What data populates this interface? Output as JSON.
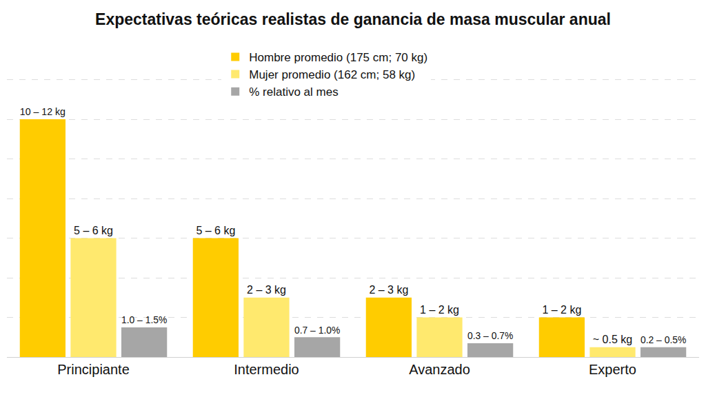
{
  "chart_data": {
    "type": "bar",
    "title": "Expectativas teóricas realistas de ganancia de masa muscular anual",
    "categories": [
      "Principiante",
      "Intermedio",
      "Avanzado",
      "Experto"
    ],
    "series": [
      {
        "name": "Hombre promedio (175 cm; 70 kg)",
        "color": "#FFCC00",
        "values": [
          12,
          6,
          3,
          2
        ],
        "value_labels": [
          "10 – 12 kg",
          "5 – 6 kg",
          "2 – 3 kg",
          "1 – 2 kg"
        ]
      },
      {
        "name": "Mujer promedio (162 cm; 58 kg)",
        "color": "#FFE96E",
        "values": [
          6,
          3,
          2,
          0.5
        ],
        "value_labels": [
          "5 – 6 kg",
          "2 – 3 kg",
          "1 – 2 kg",
          "~ 0.5 kg"
        ]
      },
      {
        "name": "% relativo al mes",
        "color": "#A6A6A6",
        "values": [
          1.5,
          1.0,
          0.7,
          0.5
        ],
        "value_labels": [
          "1.0 – 1.5%",
          "0.7 – 1.0%",
          "0.3 – 0.7%",
          "0.2 – 0.5%"
        ]
      }
    ],
    "ylim": [
      0,
      16
    ],
    "yticks": [
      0,
      2,
      4,
      6,
      8,
      10,
      12,
      14,
      16
    ],
    "grid": true,
    "legend": "top",
    "data_labels": true,
    "tick_labels": "x"
  }
}
